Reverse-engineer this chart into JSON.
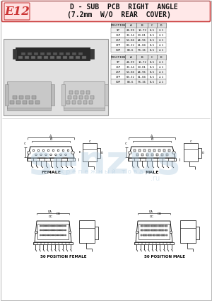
{
  "title_code": "E12",
  "title_line1": "D - SUB  PCB  RIGHT  ANGLE",
  "title_line2": "(7.2mm  W/O  REAR  COVER)",
  "bg_color": "#ffffff",
  "header_bg": "#ffe8e8",
  "table1_headers": [
    "POSITION",
    "A",
    "B",
    "C",
    "D"
  ],
  "table1_rows": [
    [
      "9P",
      "24.99",
      "16.72",
      "8.5",
      "2.1"
    ],
    [
      "15P",
      "39.14",
      "30.81",
      "8.5",
      "2.1"
    ],
    [
      "25P",
      "53.04",
      "44.96",
      "8.5",
      "2.1"
    ],
    [
      "37P",
      "69.32",
      "61.04",
      "8.5",
      "2.1"
    ],
    [
      "50P",
      "88.6",
      "78.16",
      "8.5",
      "2.1"
    ]
  ],
  "table2_headers": [
    "POSITION",
    "A",
    "B",
    "C",
    "D"
  ],
  "table2_rows": [
    [
      "9P",
      "24.99",
      "16.72",
      "8.5",
      "2.1"
    ],
    [
      "15P",
      "39.14",
      "30.81",
      "8.5",
      "2.1"
    ],
    [
      "25P",
      "53.04",
      "44.96",
      "8.5",
      "2.1"
    ],
    [
      "37P",
      "69.32",
      "61.04",
      "8.5",
      "2.1"
    ],
    [
      "50P",
      "88.6",
      "78.16",
      "8.5",
      "2.1"
    ]
  ],
  "label_female": "FEMALE",
  "label_male": "MALE",
  "label_50f": "50 POSITION FEMALE",
  "label_50m": "50 POSITION MALE",
  "photo_bg": "#d8d8d8",
  "wm_color": "#b0cce0",
  "wm_alpha": 0.4
}
